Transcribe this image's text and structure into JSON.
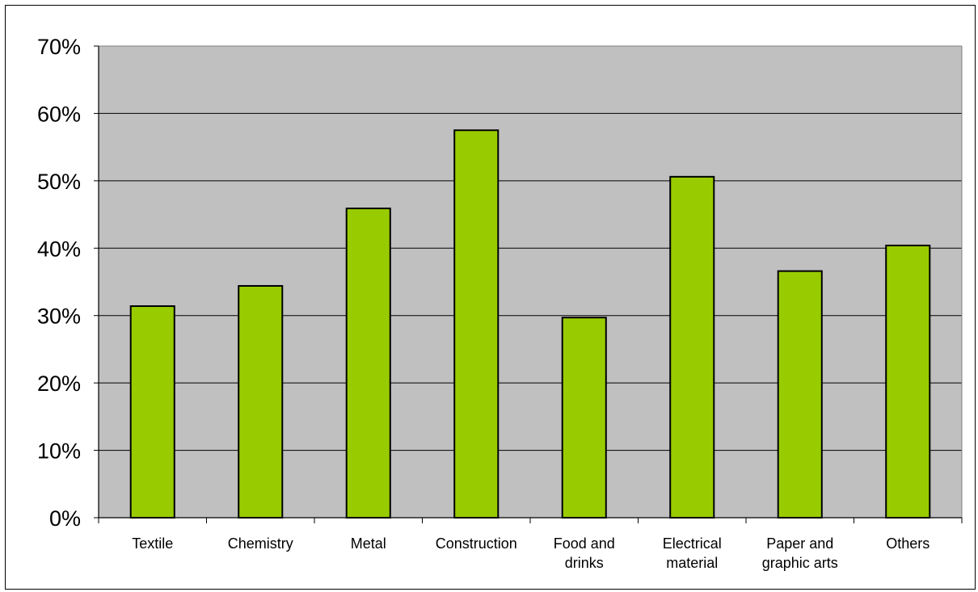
{
  "chart_data": {
    "type": "bar",
    "title": "",
    "xlabel": "",
    "ylabel": "",
    "categories": [
      [
        "Textile"
      ],
      [
        "Chemistry"
      ],
      [
        "Metal"
      ],
      [
        "Construction"
      ],
      [
        "Food and",
        "drinks"
      ],
      [
        "Electrical",
        "material"
      ],
      [
        "Paper and",
        "graphic arts"
      ],
      [
        "Others"
      ]
    ],
    "values": [
      31.4,
      34.4,
      45.9,
      57.5,
      29.7,
      50.6,
      36.6,
      40.4
    ],
    "ylim": [
      0,
      70
    ],
    "yticks": [
      "0%",
      "10%",
      "20%",
      "30%",
      "40%",
      "50%",
      "60%",
      "70%"
    ],
    "grid": true,
    "legend": "none",
    "colors": {
      "bar": "#99cc00",
      "plot_bg": "#c0c0c0",
      "grid": "#000000"
    }
  }
}
